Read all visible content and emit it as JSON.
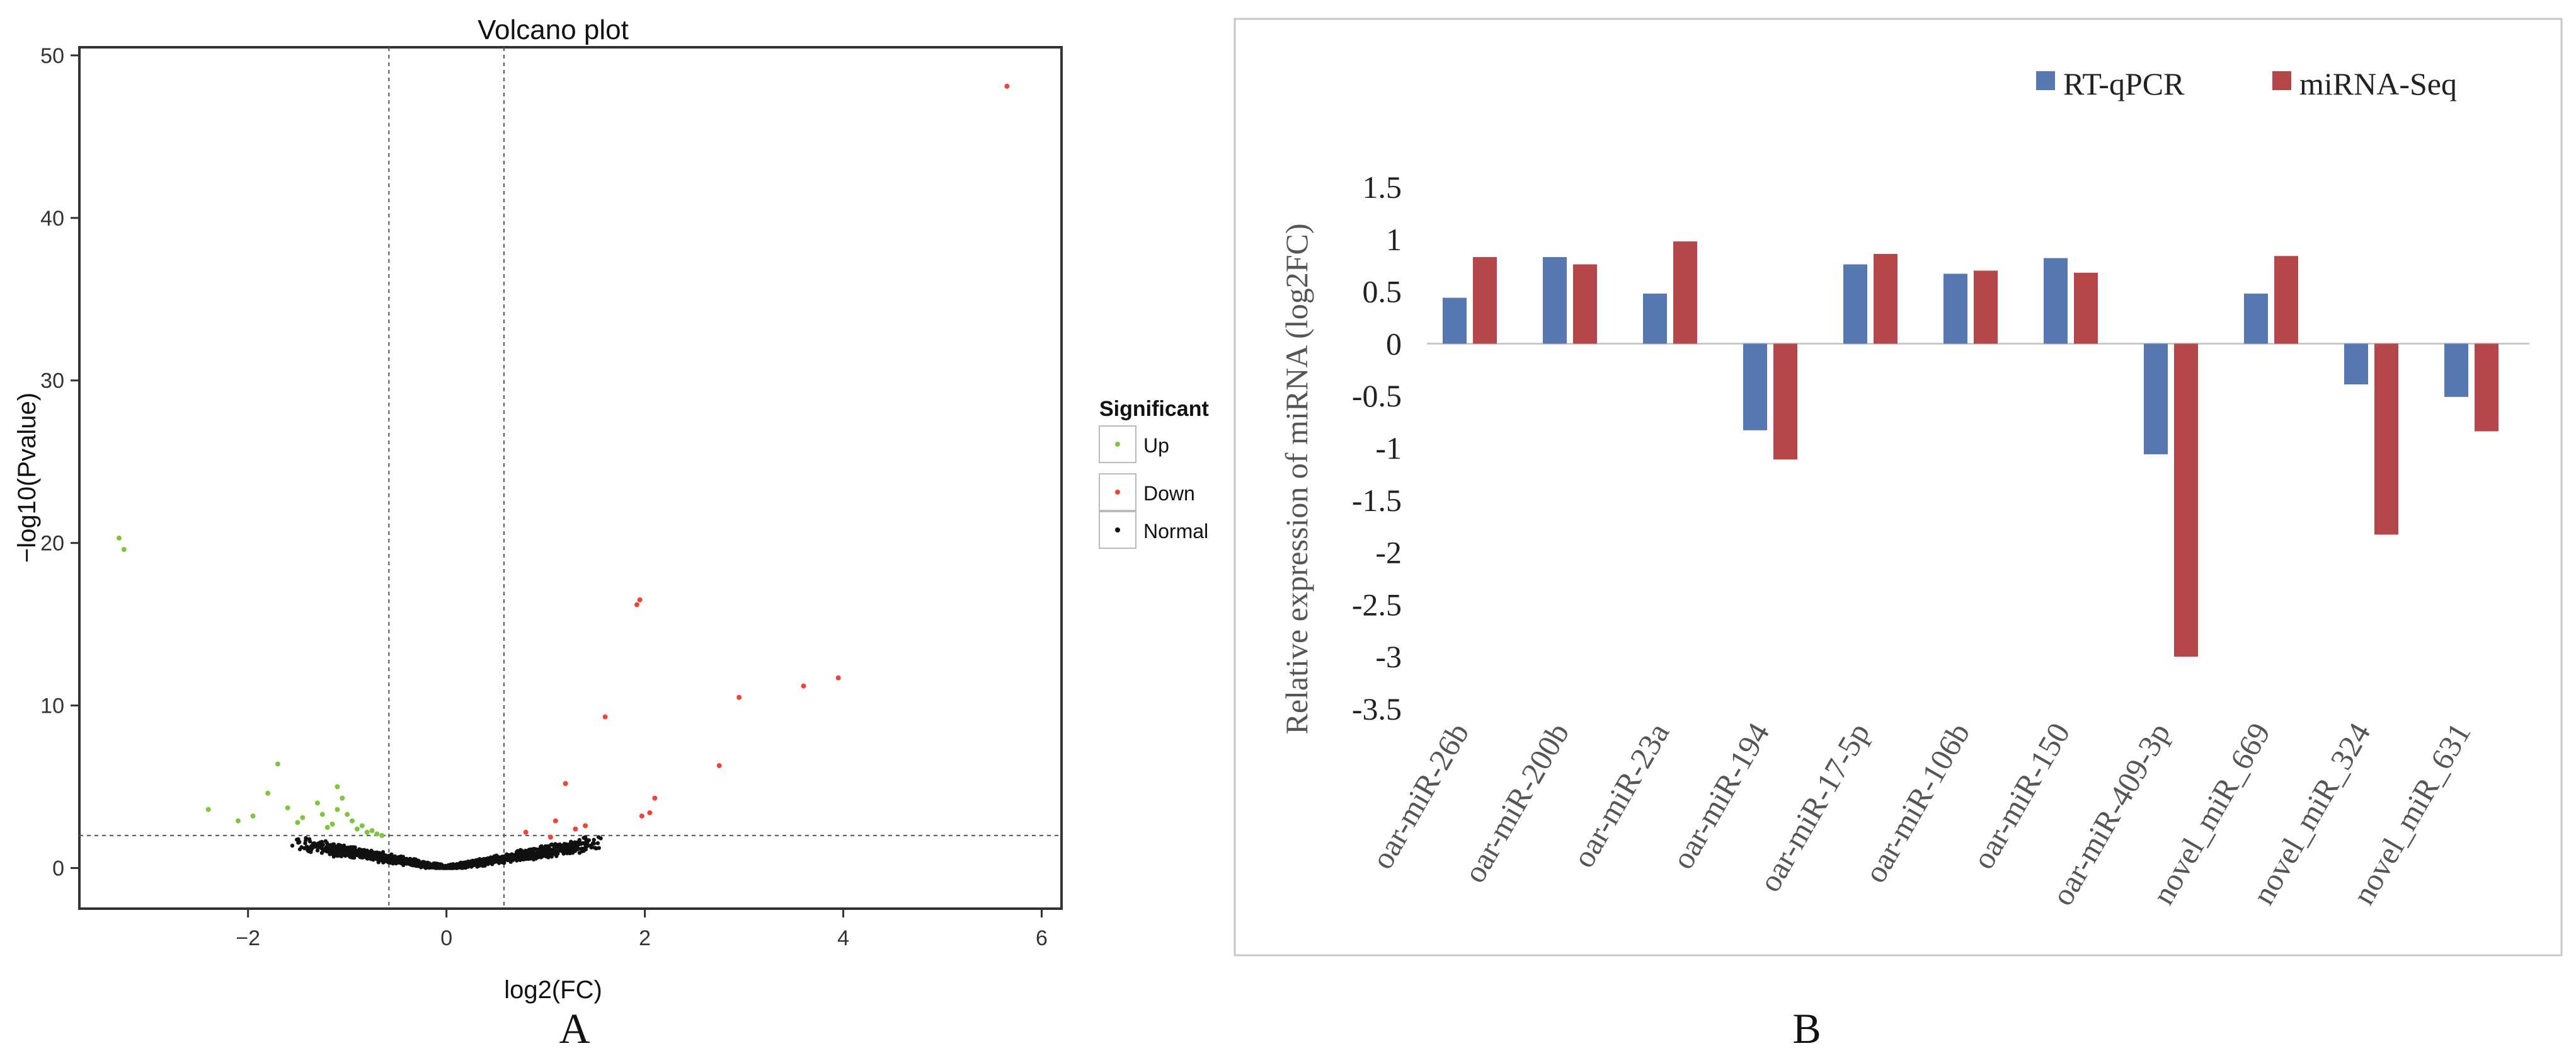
{
  "panel_labels": {
    "a": "A",
    "b": "B"
  },
  "chart_data": [
    {
      "type": "scatter",
      "title": "Volcano plot",
      "xlabel": "log2(FC)",
      "ylabel": "−log10(Pvalue)",
      "xlim": [
        -3.7,
        6.2
      ],
      "ylim": [
        -2.5,
        50.5
      ],
      "xticks": [
        -2,
        0,
        2,
        4,
        6
      ],
      "xtick_labels": [
        "−2",
        "0",
        "2",
        "4",
        "6"
      ],
      "yticks": [
        0,
        10,
        20,
        30,
        40,
        50
      ],
      "ytick_labels": [
        "0",
        "10",
        "20",
        "30",
        "40",
        "50"
      ],
      "thresholds": {
        "fc": [
          -0.58,
          0.58
        ],
        "pvalue": 2.0
      },
      "legend": {
        "title": "Significant",
        "position": "right",
        "entries": [
          {
            "name": "Up",
            "color": "#7fc441"
          },
          {
            "name": "Down",
            "color": "#f0443a"
          },
          {
            "name": "Normal",
            "color": "#111111"
          }
        ]
      },
      "series": [
        {
          "name": "Up",
          "color": "#7fc441",
          "points": [
            [
              -3.3,
              20.3
            ],
            [
              -3.25,
              19.6
            ],
            [
              -2.4,
              3.6
            ],
            [
              -2.1,
              2.9
            ],
            [
              -1.95,
              3.2
            ],
            [
              -1.8,
              4.6
            ],
            [
              -1.7,
              6.4
            ],
            [
              -1.6,
              3.7
            ],
            [
              -1.5,
              2.8
            ],
            [
              -1.45,
              3.1
            ],
            [
              -1.3,
              4.0
            ],
            [
              -1.25,
              3.3
            ],
            [
              -1.2,
              2.5
            ],
            [
              -1.15,
              2.7
            ],
            [
              -1.1,
              3.6
            ],
            [
              -1.1,
              5.0
            ],
            [
              -1.05,
              4.3
            ],
            [
              -1.0,
              3.3
            ],
            [
              -0.95,
              2.9
            ],
            [
              -0.9,
              2.4
            ],
            [
              -0.85,
              2.6
            ],
            [
              -0.8,
              2.2
            ],
            [
              -0.75,
              2.3
            ],
            [
              -0.7,
              2.1
            ],
            [
              -0.65,
              2.0
            ]
          ]
        },
        {
          "name": "Down",
          "color": "#f0443a",
          "points": [
            [
              0.8,
              2.2
            ],
            [
              1.05,
              1.9
            ],
            [
              1.1,
              2.9
            ],
            [
              1.2,
              5.2
            ],
            [
              1.3,
              2.4
            ],
            [
              1.4,
              2.6
            ],
            [
              1.6,
              9.3
            ],
            [
              1.92,
              16.2
            ],
            [
              1.95,
              16.5
            ],
            [
              1.97,
              3.2
            ],
            [
              2.05,
              3.4
            ],
            [
              2.1,
              4.3
            ],
            [
              2.75,
              6.3
            ],
            [
              2.95,
              10.5
            ],
            [
              3.6,
              11.2
            ],
            [
              3.95,
              11.7
            ],
            [
              5.65,
              48.1
            ]
          ]
        },
        {
          "name": "Normal",
          "color": "#111111",
          "points": "generated_dense_cloud_near_origin"
        }
      ]
    },
    {
      "type": "bar",
      "title": "",
      "xlabel": "",
      "ylabel": "Relative expression of miRNA (log2FC)",
      "ylim": [
        -3.5,
        1.5
      ],
      "yticks": [
        1.5,
        1,
        0.5,
        0,
        -0.5,
        -1,
        -1.5,
        -2,
        -2.5,
        -3,
        -3.5
      ],
      "ytick_labels": [
        "1.5",
        "1",
        "0.5",
        "0",
        "-0.5",
        "-1",
        "-1.5",
        "-2",
        "-2.5",
        "-3",
        "-3.5"
      ],
      "legend": {
        "position": "top-right",
        "entries": [
          "RT-qPCR",
          "miRNA-Seq"
        ]
      },
      "categories": [
        "oar-miR-26b",
        "oar-miR-200b",
        "oar-miR-23a",
        "oar-miR-194",
        "oar-miR-17-5p",
        "oar-miR-106b",
        "oar-miR-150",
        "oar-miR-409-3p",
        "novel_miR_669",
        "novel_miR_324",
        "novel_miR_631"
      ],
      "series": [
        {
          "name": "RT-qPCR",
          "color": "#5677b0",
          "values": [
            0.44,
            0.83,
            0.48,
            -0.83,
            0.76,
            0.67,
            0.82,
            -1.06,
            0.48,
            -0.39,
            -0.51
          ]
        },
        {
          "name": "miRNA-Seq",
          "color": "#b5474b",
          "values": [
            0.83,
            0.76,
            0.98,
            -1.11,
            0.86,
            0.7,
            0.68,
            -3.0,
            0.84,
            -1.83,
            -0.84
          ]
        }
      ]
    }
  ]
}
